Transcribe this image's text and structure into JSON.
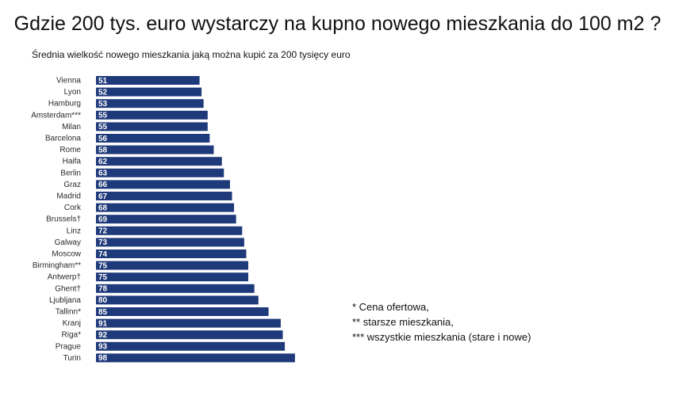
{
  "title": "Gdzie 200 tys. euro wystarczy na kupno nowego mieszkania do 100 m2 ?",
  "subtitle": "Średnia wielkość nowego mieszkania jaką można kupić za 200 tysięcy euro",
  "notes": [
    "* Cena ofertowa,",
    "** starsze mieszkania,",
    "*** wszystkie mieszkania (stare i nowe)"
  ],
  "colors": {
    "bar": "#1f3a7a",
    "value_text": "#ffffff"
  },
  "chart_data": {
    "type": "bar",
    "orientation": "horizontal",
    "categories": [
      "Vienna",
      "Lyon",
      "Hamburg",
      "Amsterdam***",
      "Milan",
      "Barcelona",
      "Rome",
      "Haifa",
      "Berlin",
      "Graz",
      "Madrid",
      "Cork",
      "Brussels†",
      "Linz",
      "Galway",
      "Moscow",
      "Birmingham**",
      "Antwerp†",
      "Ghent†",
      "Ljubljana",
      "Tallinn*",
      "Kranj",
      "Riga*",
      "Prague",
      "Turin"
    ],
    "values": [
      51,
      52,
      53,
      55,
      55,
      56,
      58,
      62,
      63,
      66,
      67,
      68,
      69,
      72,
      73,
      74,
      75,
      75,
      78,
      80,
      85,
      91,
      92,
      93,
      98
    ],
    "title": "Średnia wielkość nowego mieszkania jaką można kupić za 200 tysięcy euro",
    "xlim": [
      0,
      98
    ],
    "grid": false,
    "data_labels": true
  }
}
